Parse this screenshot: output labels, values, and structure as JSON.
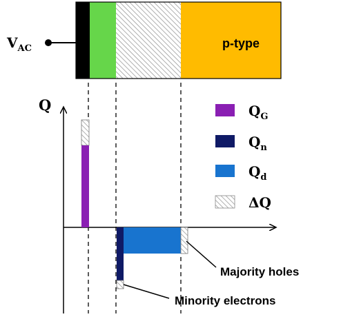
{
  "device": {
    "terminal_label": "V",
    "terminal_label_sub": "AC",
    "region_label": "p-type",
    "colors": {
      "gate": "#000000",
      "layer": "#66d64a",
      "depletion_hatch": "#9a9a9a",
      "p_type": "#ffbb00"
    }
  },
  "plot": {
    "y_axis_label": "Q"
  },
  "legend": {
    "items": [
      {
        "symbol": "Q",
        "sub": "G",
        "color": "#8a1fb3"
      },
      {
        "symbol": "Q",
        "sub": "n",
        "color": "#0f1a66"
      },
      {
        "symbol": "Q",
        "sub": "d",
        "color": "#1874cf"
      },
      {
        "symbol": "ΔQ",
        "sub": "",
        "color": "hatch"
      }
    ]
  },
  "annotations": {
    "majority": "Majority holes",
    "minority": "Minority electrons"
  }
}
